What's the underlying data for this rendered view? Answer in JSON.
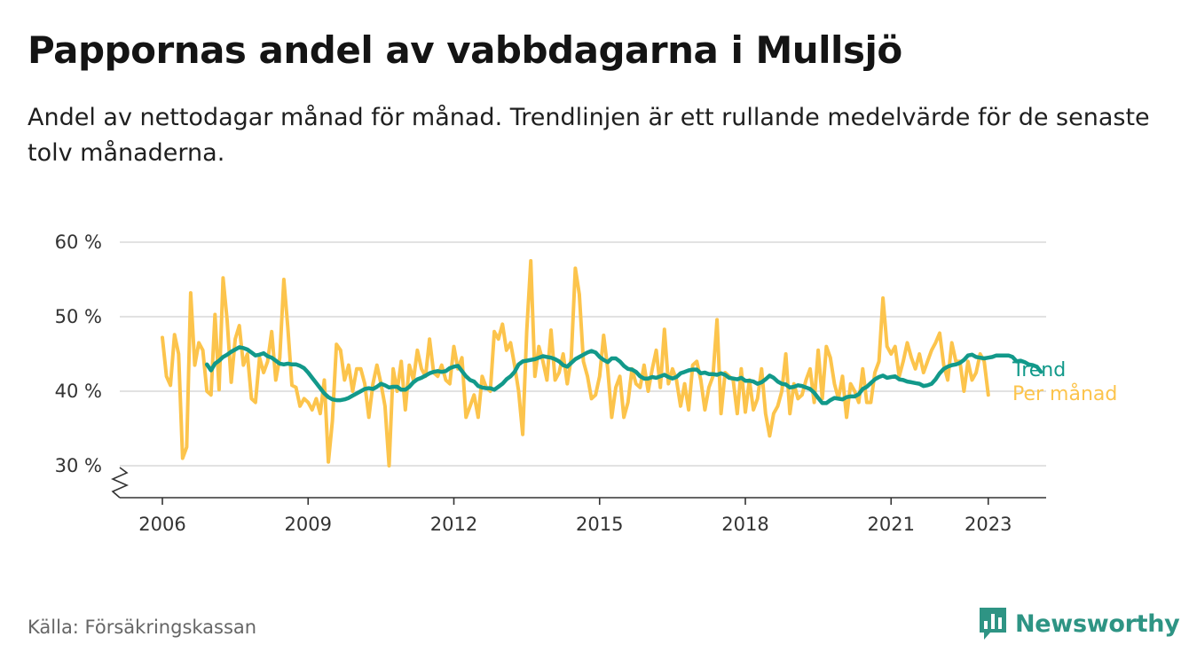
{
  "header": {
    "title": "Pappornas andel av vabbdagarna i Mullsjö",
    "subtitle": "Andel av nettodagar månad för månad. Trendlinjen är ett rullande medelvärde för de senaste tolv månaderna."
  },
  "footer": {
    "source": "Källa: Försäkringskassan",
    "brand": "Newsworthy",
    "brand_icon": "bar-chart-icon"
  },
  "colors": {
    "trend": "#12998a",
    "monthly": "#fcc44c",
    "grid": "#d9d9d9",
    "axis": "#333333",
    "brand": "#2e9484"
  },
  "chart_data": {
    "type": "line",
    "title": "Pappornas andel av vabbdagarna i Mullsjö",
    "ylabel": "",
    "xlabel": "",
    "ylim": [
      27,
      60
    ],
    "y_ticks": [
      30,
      40,
      50,
      60
    ],
    "y_tick_labels": [
      "30 %",
      "40 %",
      "50 %",
      "60 %"
    ],
    "y_axis_break": true,
    "x_ticks": [
      2006,
      2009,
      2012,
      2015,
      2018,
      2021,
      2023
    ],
    "x_tick_labels": [
      "2006",
      "2009",
      "2012",
      "2015",
      "2018",
      "2021",
      "2023"
    ],
    "x_start": "2006-01",
    "grid": true,
    "legend": "direct labels at line ends (right)",
    "series": [
      {
        "name": "Per månad",
        "color": "#fcc44c",
        "values": [
          47.2,
          42.0,
          40.8,
          47.6,
          45.0,
          31.0,
          32.5,
          53.2,
          43.5,
          46.5,
          45.5,
          40.0,
          39.5,
          50.3,
          40.2,
          55.2,
          49.5,
          41.2,
          47.0,
          48.8,
          43.5,
          45.0,
          39.0,
          38.5,
          44.5,
          42.5,
          44.0,
          48.0,
          41.5,
          44.5,
          55.0,
          48.5,
          40.8,
          40.5,
          38.0,
          39.0,
          38.5,
          37.5,
          39.0,
          37.0,
          41.5,
          30.5,
          36.0,
          46.3,
          45.5,
          41.5,
          43.5,
          40.0,
          43.0,
          43.0,
          41.0,
          36.5,
          41.0,
          43.5,
          41.0,
          38.0,
          30.0,
          43.0,
          40.0,
          44.0,
          37.5,
          43.5,
          41.5,
          45.5,
          43.0,
          42.0,
          47.0,
          42.5,
          42.0,
          43.5,
          41.5,
          41.0,
          46.0,
          43.0,
          44.5,
          36.5,
          38.0,
          39.5,
          36.5,
          42.0,
          40.5,
          40.0,
          48.0,
          47.0,
          49.0,
          45.5,
          46.5,
          43.5,
          40.0,
          34.2,
          48.0,
          57.5,
          42.0,
          46.0,
          44.0,
          41.5,
          48.2,
          41.5,
          42.5,
          45.0,
          41.0,
          44.5,
          56.5,
          53.0,
          44.0,
          42.0,
          39.0,
          39.5,
          42.0,
          47.5,
          43.0,
          36.5,
          40.5,
          42.0,
          36.5,
          38.5,
          43.0,
          41.0,
          40.5,
          43.5,
          40.0,
          43.0,
          45.5,
          40.5,
          48.3,
          41.0,
          43.0,
          41.5,
          38.0,
          41.0,
          37.5,
          43.5,
          44.0,
          41.5,
          37.5,
          40.5,
          42.0,
          49.6,
          37.0,
          42.5,
          42.0,
          41.5,
          37.0,
          43.0,
          37.2,
          41.5,
          37.5,
          39.0,
          43.0,
          37.0,
          34.0,
          37.0,
          38.0,
          40.0,
          45.0,
          37.0,
          41.0,
          39.0,
          39.5,
          41.5,
          43.0,
          38.5,
          45.5,
          39.0,
          46.0,
          44.5,
          41.0,
          39.0,
          42.0,
          36.5,
          41.0,
          40.0,
          38.5,
          43.0,
          38.5,
          38.5,
          42.5,
          44.0,
          52.5,
          46.0,
          45.0,
          46.0,
          42.0,
          44.0,
          46.5,
          44.5,
          43.0,
          45.0,
          42.5,
          44.0,
          45.5,
          46.5,
          47.8,
          43.5,
          41.5,
          46.5,
          44.0,
          44.0,
          40.0,
          44.0,
          41.5,
          42.5,
          45.0,
          44.0,
          39.5
        ]
      },
      {
        "name": "Trend",
        "color": "#12998a",
        "start_index": 11,
        "values": [
          43.6,
          42.8,
          43.7,
          44.1,
          44.6,
          44.9,
          45.3,
          45.6,
          45.9,
          45.8,
          45.6,
          45.2,
          44.8,
          44.9,
          45.1,
          44.7,
          44.5,
          44.1,
          43.7,
          43.6,
          43.7,
          43.6,
          43.6,
          43.4,
          43.1,
          42.5,
          41.8,
          41.1,
          40.4,
          39.7,
          39.2,
          38.9,
          38.8,
          38.8,
          38.9,
          39.1,
          39.4,
          39.7,
          40.0,
          40.3,
          40.4,
          40.3,
          40.6,
          41.0,
          40.8,
          40.5,
          40.6,
          40.6,
          40.2,
          40.2,
          40.6,
          41.2,
          41.6,
          41.8,
          42.1,
          42.4,
          42.6,
          42.7,
          42.6,
          42.7,
          43.1,
          43.3,
          43.4,
          42.7,
          42.0,
          41.5,
          41.3,
          40.7,
          40.5,
          40.4,
          40.4,
          40.2,
          40.6,
          41.0,
          41.6,
          42.0,
          42.6,
          43.6,
          44.0,
          44.1,
          44.2,
          44.3,
          44.5,
          44.7,
          44.6,
          44.5,
          44.3,
          44.0,
          43.5,
          43.3,
          43.8,
          44.3,
          44.6,
          44.9,
          45.2,
          45.4,
          45.2,
          44.6,
          44.2,
          43.9,
          44.4,
          44.4,
          44.0,
          43.4,
          43.0,
          42.9,
          42.6,
          42.0,
          41.7,
          41.7,
          41.9,
          41.8,
          42.0,
          42.2,
          41.9,
          41.7,
          41.9,
          42.4,
          42.6,
          42.8,
          42.9,
          42.9,
          42.4,
          42.5,
          42.3,
          42.3,
          42.2,
          42.4,
          42.2,
          41.8,
          41.7,
          41.6,
          41.8,
          41.4,
          41.4,
          41.3,
          41.0,
          41.2,
          41.6,
          42.1,
          41.8,
          41.3,
          41.0,
          40.9,
          40.5,
          40.6,
          40.8,
          40.7,
          40.5,
          40.3,
          39.8,
          39.1,
          38.4,
          38.4,
          38.8,
          39.1,
          39.0,
          38.9,
          39.2,
          39.3,
          39.3,
          39.6,
          40.3,
          40.6,
          41.1,
          41.6,
          41.9,
          42.1,
          41.8,
          41.9,
          42.0,
          41.6,
          41.5,
          41.3,
          41.2,
          41.1,
          41.0,
          40.7,
          40.8,
          41.0,
          41.6,
          42.4,
          43.0,
          43.3,
          43.5,
          43.6,
          43.8,
          44.2,
          44.8,
          44.9,
          44.6,
          44.5,
          44.4,
          44.5,
          44.6,
          44.8,
          44.8,
          44.8,
          44.8,
          44.6,
          44.0,
          44.1,
          43.9,
          43.6,
          43.5,
          43.3,
          42.6
        ]
      }
    ]
  }
}
